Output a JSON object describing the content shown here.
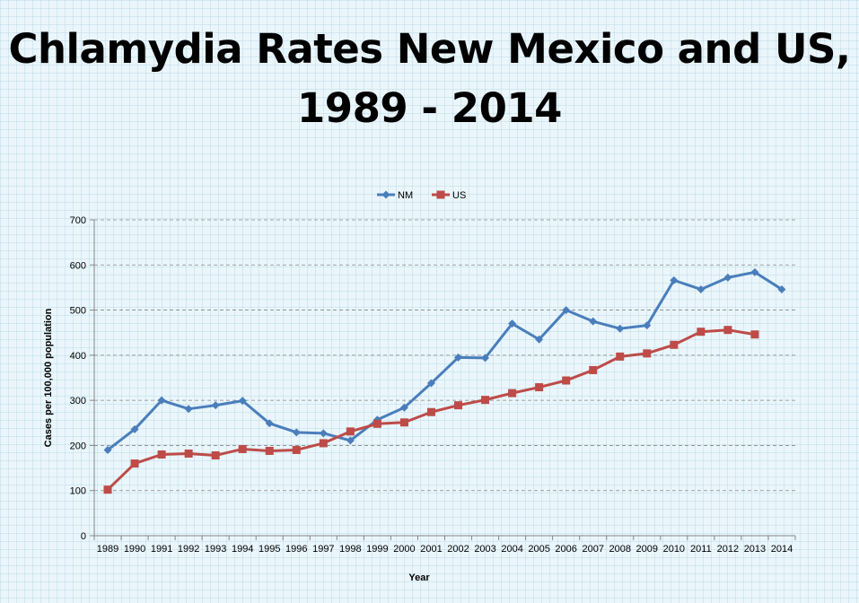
{
  "title": {
    "line1": "Chlamydia Rates New Mexico and US,",
    "line2": "1989 - 2014"
  },
  "chart_data": {
    "type": "line",
    "title": "Chlamydia Rates New Mexico and US, 1989 - 2014",
    "xlabel": "Year",
    "ylabel": "Cases per 100,000 population",
    "ylim": [
      0,
      700
    ],
    "yticks": [
      0,
      100,
      200,
      300,
      400,
      500,
      600,
      700
    ],
    "grid": "horizontal dashed",
    "legend_position": "top",
    "categories": [
      "1989",
      "1990",
      "1991",
      "1992",
      "1993",
      "1994",
      "1995",
      "1996",
      "1997",
      "1998",
      "1999",
      "2000",
      "2001",
      "2002",
      "2003",
      "2004",
      "2005",
      "2006",
      "2007",
      "2008",
      "2009",
      "2010",
      "2011",
      "2012",
      "2013",
      "2014"
    ],
    "series": [
      {
        "name": "NM",
        "color": "#4a7ebb",
        "marker": "diamond",
        "values": [
          190,
          236,
          300,
          281,
          289,
          299,
          249,
          229,
          227,
          211,
          257,
          284,
          338,
          395,
          394,
          470,
          435,
          500,
          475,
          459,
          466,
          566,
          546,
          572,
          584,
          546
        ]
      },
      {
        "name": "US",
        "color": "#be4b48",
        "marker": "square",
        "values": [
          102,
          160,
          180,
          182,
          178,
          192,
          188,
          190,
          205,
          231,
          248,
          251,
          274,
          289,
          301,
          316,
          329,
          344,
          367,
          397,
          404,
          423,
          452,
          456,
          446,
          null
        ]
      }
    ]
  }
}
